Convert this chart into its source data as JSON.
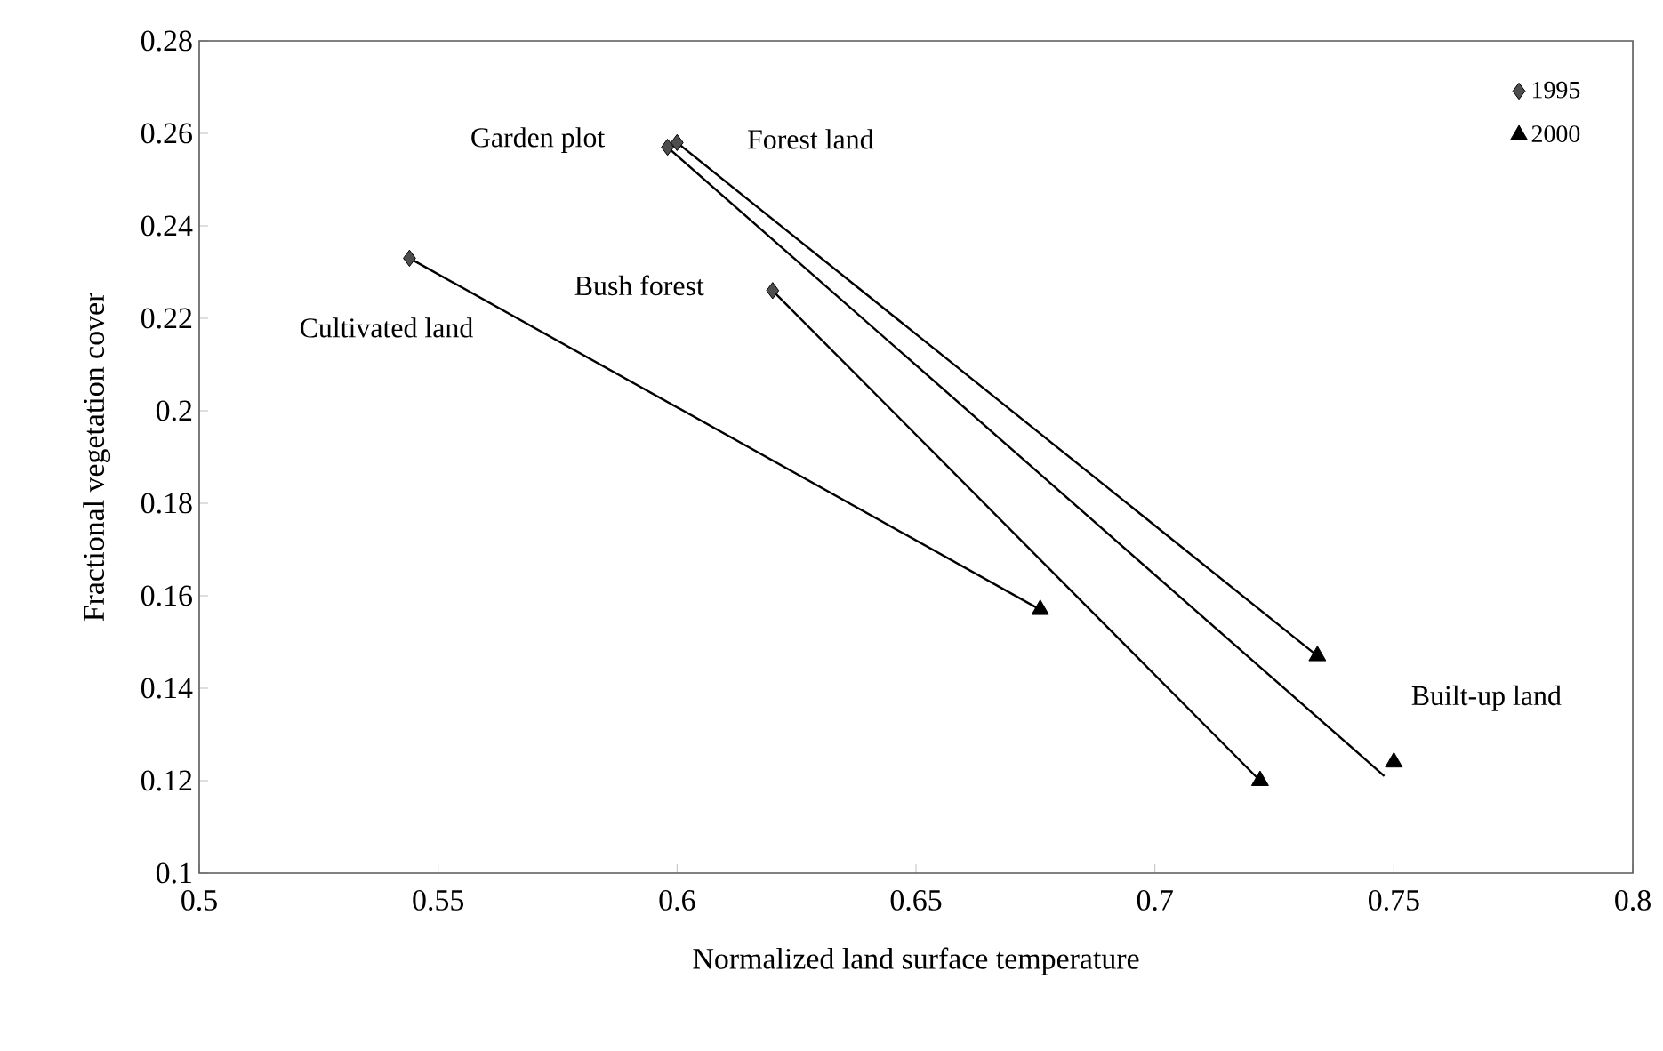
{
  "chart_data": {
    "type": "scatter",
    "xlabel": "Normalized land surface temperature",
    "ylabel": "Fractional vegetation cover",
    "xlim": [
      0.5,
      0.8
    ],
    "xticks": [
      0.5,
      0.55,
      0.6,
      0.65,
      0.7,
      0.75,
      0.8
    ],
    "ylim": [
      0.1,
      0.28
    ],
    "yticks": [
      0.1,
      0.12,
      0.14,
      0.16,
      0.18,
      0.2,
      0.22,
      0.24,
      0.26,
      0.28
    ],
    "legend": "top right",
    "series": [
      {
        "type": "line",
        "color": "#000000",
        "marker": "none",
        "x": [
          0.544,
          0.676
        ],
        "values": [
          0.233,
          0.157
        ]
      },
      {
        "type": "line",
        "color": "#000000",
        "marker": "none",
        "x": [
          0.598,
          0.748
        ],
        "values": [
          0.257,
          0.121
        ]
      },
      {
        "type": "line",
        "color": "#000000",
        "marker": "none",
        "x": [
          0.6,
          0.734
        ],
        "values": [
          0.258,
          0.147
        ]
      },
      {
        "type": "line",
        "color": "#000000",
        "marker": "none",
        "x": [
          0.62,
          0.722
        ],
        "values": [
          0.226,
          0.12
        ]
      },
      {
        "name": "1995",
        "marker": "diamond",
        "color": "#4d4d4d",
        "x": [
          0.544,
          0.598,
          0.6,
          0.62
        ],
        "values": [
          0.233,
          0.257,
          0.258,
          0.226
        ]
      },
      {
        "name": "2000",
        "marker": "triangle",
        "color": "#000000",
        "x": [
          0.676,
          0.75,
          0.734,
          0.722
        ],
        "values": [
          0.157,
          0.124,
          0.147,
          0.12
        ]
      }
    ],
    "annotations": [
      {
        "text": "Cultivated land",
        "x": 0.544,
        "y": 0.233
      },
      {
        "text": "Garden plot",
        "x": 0.598,
        "y": 0.257
      },
      {
        "text": "Forest land",
        "x": 0.6,
        "y": 0.258
      },
      {
        "text": "Bush forest",
        "x": 0.62,
        "y": 0.226
      },
      {
        "text": "Built-up land",
        "x": 0.75,
        "y": 0.124
      }
    ]
  }
}
